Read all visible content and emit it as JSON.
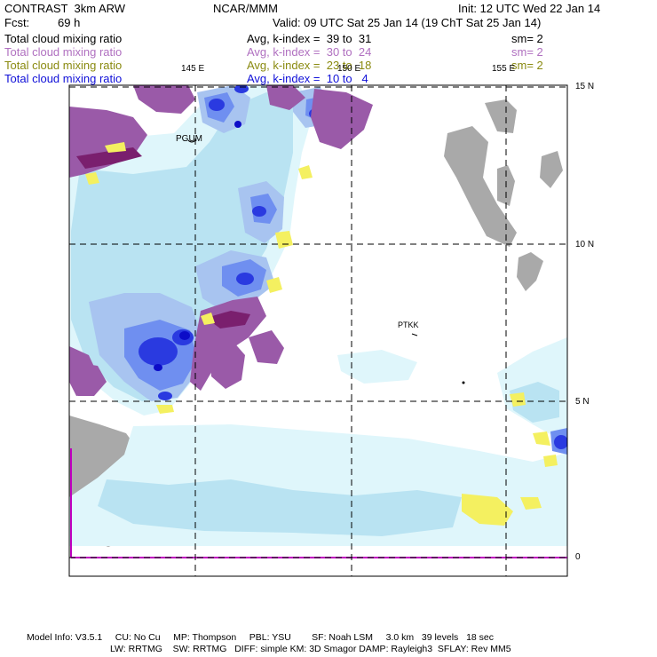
{
  "header": {
    "model": "CONTRAST  3km ARW",
    "center": "NCAR/MMM",
    "init": "Init: 12 UTC Wed 22 Jan 14",
    "fcst_label": "Fcst:",
    "fcst_value": "69 h",
    "valid": "Valid: 09 UTC Sat 25 Jan 14 (19 ChT Sat 25 Jan 14)"
  },
  "fields": [
    {
      "name": "Total cloud mixing ratio",
      "stat": "Avg, k-index =  39 to  31",
      "sm": "sm= 2",
      "color": "#000000"
    },
    {
      "name": "Total cloud mixing ratio",
      "stat": "Avg, k-index =  30 to  24",
      "sm": "sm= 2",
      "color": "#b070c0"
    },
    {
      "name": "Total cloud mixing ratio",
      "stat": "Avg, k-index =  23 to  18",
      "sm": "sm= 2",
      "color": "#8a8a10"
    },
    {
      "name": "Total cloud mixing ratio",
      "stat": "Avg, k-index =  10 to   4",
      "sm": "",
      "color": "#1010d8"
    }
  ],
  "map": {
    "lon_labels": [
      "145 E",
      "150 E",
      "155 E"
    ],
    "lat_labels": [
      "15 N",
      "10 N",
      "5 N",
      "0"
    ],
    "stations": [
      "PGUM",
      "PTKK"
    ]
  },
  "footer": {
    "line1": "Model Info: V3.5.1     CU: No Cu     MP: Thompson     PBL: YSU        SF: Noah LSM     3.0 km   39 levels   18 sec",
    "line2": "LW: RRTMG    SW: RRTMG   DIFF: simple KM: 3D Smagor DAMP: Rayleigh3  SFLAY: Rev MM5"
  },
  "colors": {
    "light_cyan": "#dff6fb",
    "sky": "#b9e3f2",
    "pale_blue": "#a8c4f0",
    "blue": "#6f8ff0",
    "deep_blue": "#2a3ae0",
    "navy": "#1010d0",
    "purple": "#9a5aa8",
    "magenta_dark": "#7a1f6e",
    "yellow": "#f4f060",
    "gray": "#a0a0a0"
  }
}
